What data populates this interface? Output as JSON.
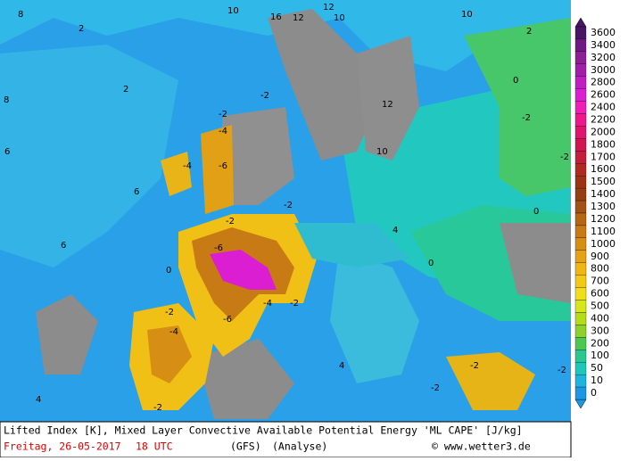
{
  "chart_data": {
    "type": "map",
    "title": "Lifted Index [K], Mixed Layer Convective Available Potential Energy 'ML CAPE' [J/kg]",
    "date": "Freitag, 26-05-2017",
    "time": "18 UTC",
    "model": "(GFS)",
    "run": "(Analyse)",
    "credit": "© www.wetter3.de",
    "colorbar": {
      "levels": [
        3600,
        3400,
        3200,
        3000,
        2800,
        2600,
        2400,
        2200,
        2000,
        1800,
        1700,
        1600,
        1500,
        1400,
        1300,
        1200,
        1100,
        1000,
        900,
        800,
        700,
        600,
        500,
        400,
        300,
        200,
        100,
        50,
        10,
        0
      ],
      "colors": [
        "#4a1464",
        "#6e1a82",
        "#8c1e96",
        "#a01ea8",
        "#c01ec0",
        "#dc1ed2",
        "#f01eb4",
        "#f0168c",
        "#e0146e",
        "#d21450",
        "#c41e3c",
        "#b02a22",
        "#9c3414",
        "#963e14",
        "#a25214",
        "#b66614",
        "#c87a14",
        "#d68e14",
        "#e6a214",
        "#f0b614",
        "#f2ca16",
        "#f2de18",
        "#d6e618",
        "#b4dc18",
        "#8cd22a",
        "#4cc850",
        "#28c88e",
        "#1ec8b8",
        "#1eb4e0",
        "#1e96e6"
      ]
    },
    "map_labels": [
      10,
      16,
      12,
      12,
      10,
      10,
      2,
      8,
      8,
      2,
      -2,
      -2,
      -4,
      -6,
      -4,
      -2,
      -2,
      -6,
      -6,
      -4,
      -2,
      -2,
      -4,
      -2,
      -2,
      -2,
      -2,
      -2,
      -2,
      12,
      10,
      0,
      0,
      0,
      0,
      4,
      4,
      4,
      6,
      6,
      6,
      2
    ]
  }
}
